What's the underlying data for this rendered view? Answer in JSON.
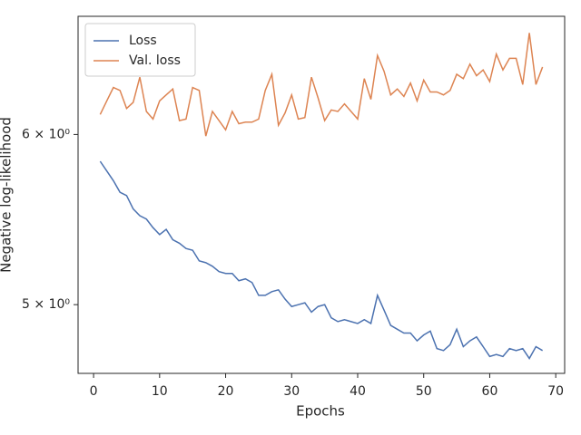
{
  "chart_data": {
    "type": "line",
    "x_label": "Epochs",
    "y_label": "Negative log-likelihood",
    "x": [
      1,
      2,
      3,
      4,
      5,
      6,
      7,
      8,
      9,
      10,
      11,
      12,
      13,
      14,
      15,
      16,
      17,
      18,
      19,
      20,
      21,
      22,
      23,
      24,
      25,
      26,
      27,
      28,
      29,
      30,
      31,
      32,
      33,
      34,
      35,
      36,
      37,
      38,
      39,
      40,
      41,
      42,
      43,
      44,
      45,
      46,
      47,
      48,
      49,
      50,
      51,
      52,
      53,
      54,
      55,
      56,
      57,
      58,
      59,
      60,
      61,
      62,
      63,
      64,
      65,
      66,
      67,
      68
    ],
    "series": [
      {
        "name": "Loss",
        "color": "#4c72b0",
        "values": [
          5.83,
          5.77,
          5.71,
          5.64,
          5.62,
          5.54,
          5.5,
          5.48,
          5.43,
          5.39,
          5.42,
          5.36,
          5.34,
          5.31,
          5.3,
          5.24,
          5.23,
          5.21,
          5.18,
          5.17,
          5.17,
          5.13,
          5.14,
          5.12,
          5.05,
          5.05,
          5.07,
          5.08,
          5.03,
          4.99,
          5.0,
          5.01,
          4.96,
          4.99,
          5.0,
          4.93,
          4.91,
          4.92,
          4.91,
          4.9,
          4.92,
          4.9,
          5.05,
          4.97,
          4.89,
          4.87,
          4.85,
          4.85,
          4.81,
          4.84,
          4.86,
          4.77,
          4.76,
          4.79,
          4.87,
          4.78,
          4.81,
          4.83,
          4.78,
          4.73,
          4.74,
          4.73,
          4.77,
          4.76,
          4.77,
          4.72,
          4.78,
          4.76
        ]
      },
      {
        "name": "Val. loss",
        "color": "#dd8452",
        "values": [
          6.13,
          6.22,
          6.31,
          6.29,
          6.17,
          6.21,
          6.38,
          6.15,
          6.1,
          6.22,
          6.26,
          6.3,
          6.09,
          6.1,
          6.31,
          6.29,
          5.99,
          6.15,
          6.09,
          6.03,
          6.15,
          6.07,
          6.08,
          6.08,
          6.1,
          6.29,
          6.4,
          6.06,
          6.14,
          6.26,
          6.1,
          6.11,
          6.38,
          6.24,
          6.09,
          6.16,
          6.15,
          6.2,
          6.15,
          6.1,
          6.37,
          6.23,
          6.53,
          6.42,
          6.26,
          6.3,
          6.25,
          6.34,
          6.22,
          6.36,
          6.28,
          6.28,
          6.26,
          6.29,
          6.4,
          6.37,
          6.47,
          6.39,
          6.43,
          6.35,
          6.54,
          6.43,
          6.51,
          6.51,
          6.33,
          6.69,
          6.33,
          6.45
        ]
      }
    ],
    "xlim": [
      -2.35,
      71.35
    ],
    "xticks": [
      0,
      10,
      20,
      30,
      40,
      50,
      60,
      70
    ],
    "ylim": [
      4.645,
      6.81
    ],
    "y_scale": "log",
    "yticks": [
      {
        "value": 5,
        "label": "5 × 10⁰"
      },
      {
        "value": 6,
        "label": "6 × 10⁰"
      }
    ],
    "legend": "upper left",
    "grid": false
  }
}
